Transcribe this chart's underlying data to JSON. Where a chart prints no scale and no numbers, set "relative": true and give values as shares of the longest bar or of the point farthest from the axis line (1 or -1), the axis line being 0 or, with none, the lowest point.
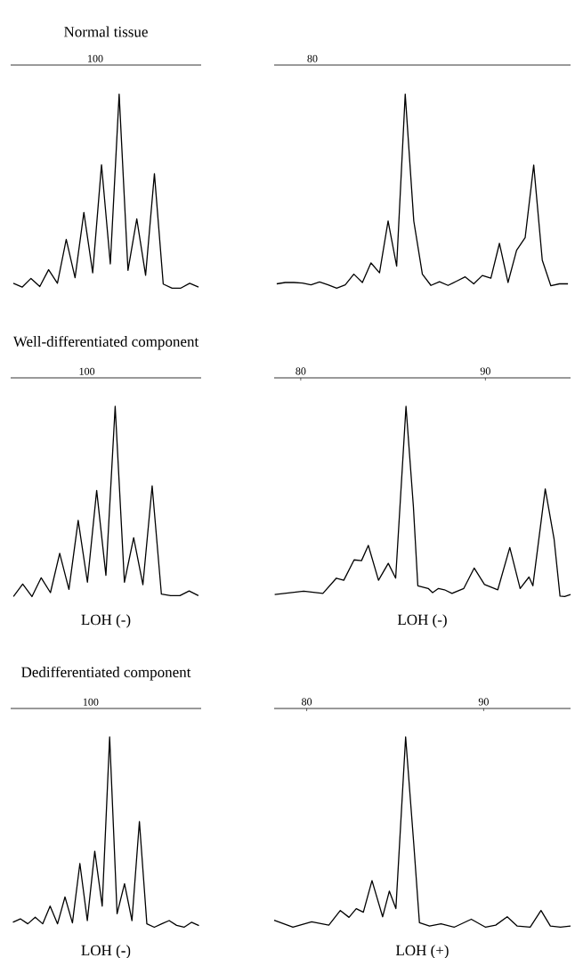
{
  "chart_data": [
    {
      "type": "line",
      "title": "Normal tissue",
      "annotations": [
        "100"
      ],
      "relative": true,
      "color": "#000000",
      "tick_labels": false,
      "categories": [
        null,
        null,
        null,
        null,
        null,
        null,
        null,
        null,
        null,
        null,
        null,
        null,
        null,
        null,
        null,
        null,
        null,
        null,
        null,
        null,
        null,
        null
      ],
      "values": [
        0.025,
        0.005,
        0.05,
        0.008,
        0.095,
        0.025,
        0.251,
        0.054,
        0.39,
        0.079,
        0.636,
        0.125,
        1,
        0.092,
        0.357,
        0.066,
        0.59,
        0.021,
        0,
        0,
        0.025,
        0.005
      ]
    },
    {
      "type": "line",
      "annotations": [
        "80"
      ],
      "relative": true,
      "color": "#000000",
      "tick_labels": false,
      "categories": [
        null,
        null,
        null,
        null,
        null,
        null,
        null,
        null,
        null,
        null,
        null,
        null,
        null,
        null,
        null,
        null,
        null,
        null,
        null,
        null,
        null,
        null,
        null,
        null,
        null,
        null,
        null,
        null,
        null,
        null,
        null,
        null,
        null,
        null,
        null
      ],
      "values": [
        0.022,
        0.029,
        0.029,
        0.026,
        0.017,
        0.032,
        0.017,
        0,
        0.017,
        0.072,
        0.029,
        0.13,
        0.079,
        0.346,
        0.113,
        1,
        0.346,
        0.072,
        0.014,
        0.033,
        0.014,
        0.036,
        0.058,
        0.022,
        0.065,
        0.051,
        0.231,
        0.029,
        0.195,
        0.26,
        0.635,
        0.144,
        0.012,
        0.022,
        0.022
      ]
    },
    {
      "type": "line",
      "title": "Well-differentiated component",
      "annotations": [
        "100",
        "LOH (-)"
      ],
      "relative": true,
      "color": "#000000",
      "tick_labels": false,
      "categories": [
        null,
        null,
        null,
        null,
        null,
        null,
        null,
        null,
        null,
        null,
        null,
        null,
        null,
        null,
        null,
        null,
        null,
        null,
        null,
        null,
        null
      ],
      "values": [
        0,
        0.066,
        0,
        0.099,
        0.021,
        0.228,
        0.038,
        0.401,
        0.076,
        0.558,
        0.112,
        1,
        0.076,
        0.31,
        0.063,
        0.582,
        0.013,
        0.005,
        0.005,
        0.03,
        0.005
      ]
    },
    {
      "type": "line",
      "annotations": [
        "LOH (-)"
      ],
      "relative": true,
      "color": "#000000",
      "tick_labels": "x",
      "xlim": [
        78.56,
        94.61
      ],
      "xticks": [
        80,
        90
      ],
      "x": [
        78.59,
        80.16,
        81.2,
        81.93,
        82.33,
        82.89,
        83.29,
        83.66,
        84.21,
        84.74,
        85.14,
        85.7,
        86.1,
        86.34,
        86.9,
        87.14,
        87.46,
        87.78,
        88.19,
        88.83,
        89.39,
        89.95,
        90.67,
        91.32,
        91.88,
        92.36,
        92.57,
        93.24,
        93.72,
        94.04,
        94.29,
        94.61
      ],
      "values": [
        0.011,
        0.029,
        0.017,
        0.097,
        0.086,
        0.193,
        0.189,
        0.269,
        0.086,
        0.175,
        0.097,
        1,
        0.473,
        0.057,
        0.043,
        0.021,
        0.043,
        0.036,
        0.017,
        0.043,
        0.15,
        0.064,
        0.036,
        0.258,
        0.043,
        0.103,
        0.057,
        0.566,
        0.301,
        0.003,
        0,
        0.011
      ]
    },
    {
      "type": "line",
      "title": "Dedifferentiated component",
      "annotations": [
        "100",
        "LOH (-)"
      ],
      "relative": true,
      "color": "#000000",
      "tick_labels": false,
      "categories": [
        null,
        null,
        null,
        null,
        null,
        null,
        null,
        null,
        null,
        null,
        null,
        null,
        null,
        null,
        null,
        null,
        null,
        null,
        null,
        null,
        null,
        null,
        null,
        null,
        null,
        null
      ],
      "values": [
        0.026,
        0.044,
        0.018,
        0.053,
        0.018,
        0.111,
        0.018,
        0.159,
        0.023,
        0.335,
        0.035,
        0.4,
        0.111,
        1,
        0.071,
        0.229,
        0.035,
        0.556,
        0.018,
        0,
        0.018,
        0.035,
        0.01,
        0,
        0.026,
        0.009
      ]
    },
    {
      "type": "line",
      "annotations": [
        "LOH (+)"
      ],
      "relative": true,
      "color": "#000000",
      "tick_labels": "x",
      "xlim": [
        78.16,
        94.91
      ],
      "xticks": [
        80,
        90
      ],
      "x": [
        78.16,
        79.22,
        80.28,
        81.25,
        81.9,
        82.39,
        82.8,
        83.2,
        83.69,
        84.29,
        84.67,
        85.04,
        85.59,
        86.05,
        86.37,
        86.94,
        87.59,
        88.33,
        89.3,
        90.11,
        90.68,
        91.33,
        91.9,
        92.63,
        93.24,
        93.77,
        94.34,
        94.91
      ],
      "values": [
        0.037,
        0,
        0.029,
        0.011,
        0.088,
        0.052,
        0.098,
        0.079,
        0.245,
        0.055,
        0.19,
        0.098,
        1,
        0.438,
        0.024,
        0.006,
        0.018,
        0,
        0.042,
        0,
        0.011,
        0.055,
        0.006,
        0,
        0.088,
        0.006,
        0,
        0.006
      ]
    }
  ]
}
